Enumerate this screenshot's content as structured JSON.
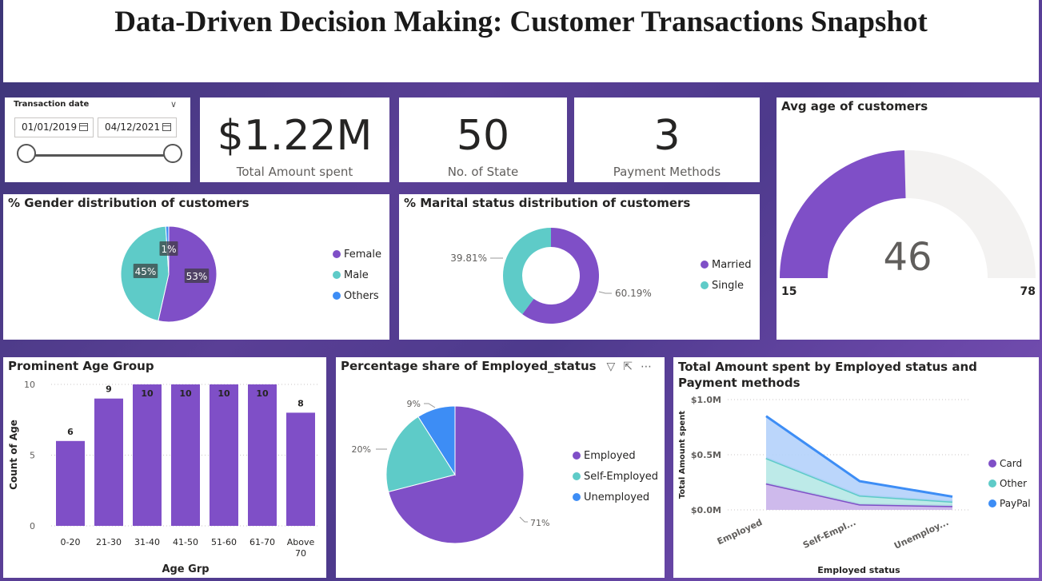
{
  "header": {
    "title": "Data-Driven Decision Making: Customer Transactions Snapshot"
  },
  "slicer": {
    "label": "Transaction date",
    "start_date": "01/01/2019",
    "end_date": "04/12/2021"
  },
  "kpis": {
    "total_amount": {
      "value": "$1.22M",
      "label": "Total Amount spent"
    },
    "states": {
      "value": "50",
      "label": "No. of State"
    },
    "payment_methods": {
      "value": "3",
      "label": "Payment Methods"
    }
  },
  "colors": {
    "purple": "#7f4fc7",
    "teal": "#5ecbc8",
    "blue": "#3d8df5",
    "gauge_bg": "#f3f2f1"
  },
  "chart_data": [
    {
      "id": "gender",
      "type": "pie",
      "title": "% Gender distribution of customers",
      "categories": [
        "Female",
        "Male",
        "Others"
      ],
      "values": [
        53,
        45,
        1
      ],
      "data_labels": [
        "53%",
        "45%",
        "1%"
      ],
      "legend": "right"
    },
    {
      "id": "marital",
      "type": "pie",
      "donut": true,
      "title": "% Marital status distribution of customers",
      "categories": [
        "Married",
        "Single"
      ],
      "values": [
        60.19,
        39.81
      ],
      "data_labels": [
        "60.19%",
        "39.81%"
      ],
      "legend": "right"
    },
    {
      "id": "avg_age",
      "type": "gauge",
      "title": "Avg age of customers",
      "value": 46,
      "min": 15,
      "max": 78,
      "value_label": "46",
      "min_label": "15",
      "max_label": "78"
    },
    {
      "id": "age_group",
      "type": "bar",
      "title": "Prominent Age Group",
      "categories": [
        "0-20",
        "21-30",
        "31-40",
        "41-50",
        "51-60",
        "61-70",
        "Above 70"
      ],
      "values": [
        6,
        9,
        10,
        10,
        10,
        10,
        8
      ],
      "xlabel": "Age Grp",
      "ylabel": "Count of Age",
      "ylim": [
        0,
        10
      ],
      "yticks": [
        "0",
        "5",
        "10"
      ],
      "grid": true
    },
    {
      "id": "employment",
      "type": "pie",
      "title": "Percentage share of Employed_status",
      "categories": [
        "Employed",
        "Self-Employed",
        "Unemployed"
      ],
      "values": [
        71,
        20,
        9
      ],
      "data_labels": [
        "71%",
        "20%",
        "9%"
      ],
      "legend": "right"
    },
    {
      "id": "amount_by_status",
      "type": "area",
      "stacked": true,
      "title": "Total Amount spent by Employed status and Payment methods",
      "categories": [
        "Employed",
        "Self-Empl...",
        "Unemploy..."
      ],
      "series": [
        {
          "name": "Card",
          "values": [
            0.24,
            0.05,
            0.035
          ]
        },
        {
          "name": "Other",
          "values": [
            0.23,
            0.08,
            0.04
          ]
        },
        {
          "name": "PayPal",
          "values": [
            0.38,
            0.13,
            0.045
          ]
        }
      ],
      "xlabel": "Employed status",
      "ylabel": "Total Amount spent",
      "ylim": [
        0,
        1.0
      ],
      "yticks": [
        "$0.0M",
        "$0.5M",
        "$1.0M"
      ],
      "legend": "right"
    }
  ]
}
